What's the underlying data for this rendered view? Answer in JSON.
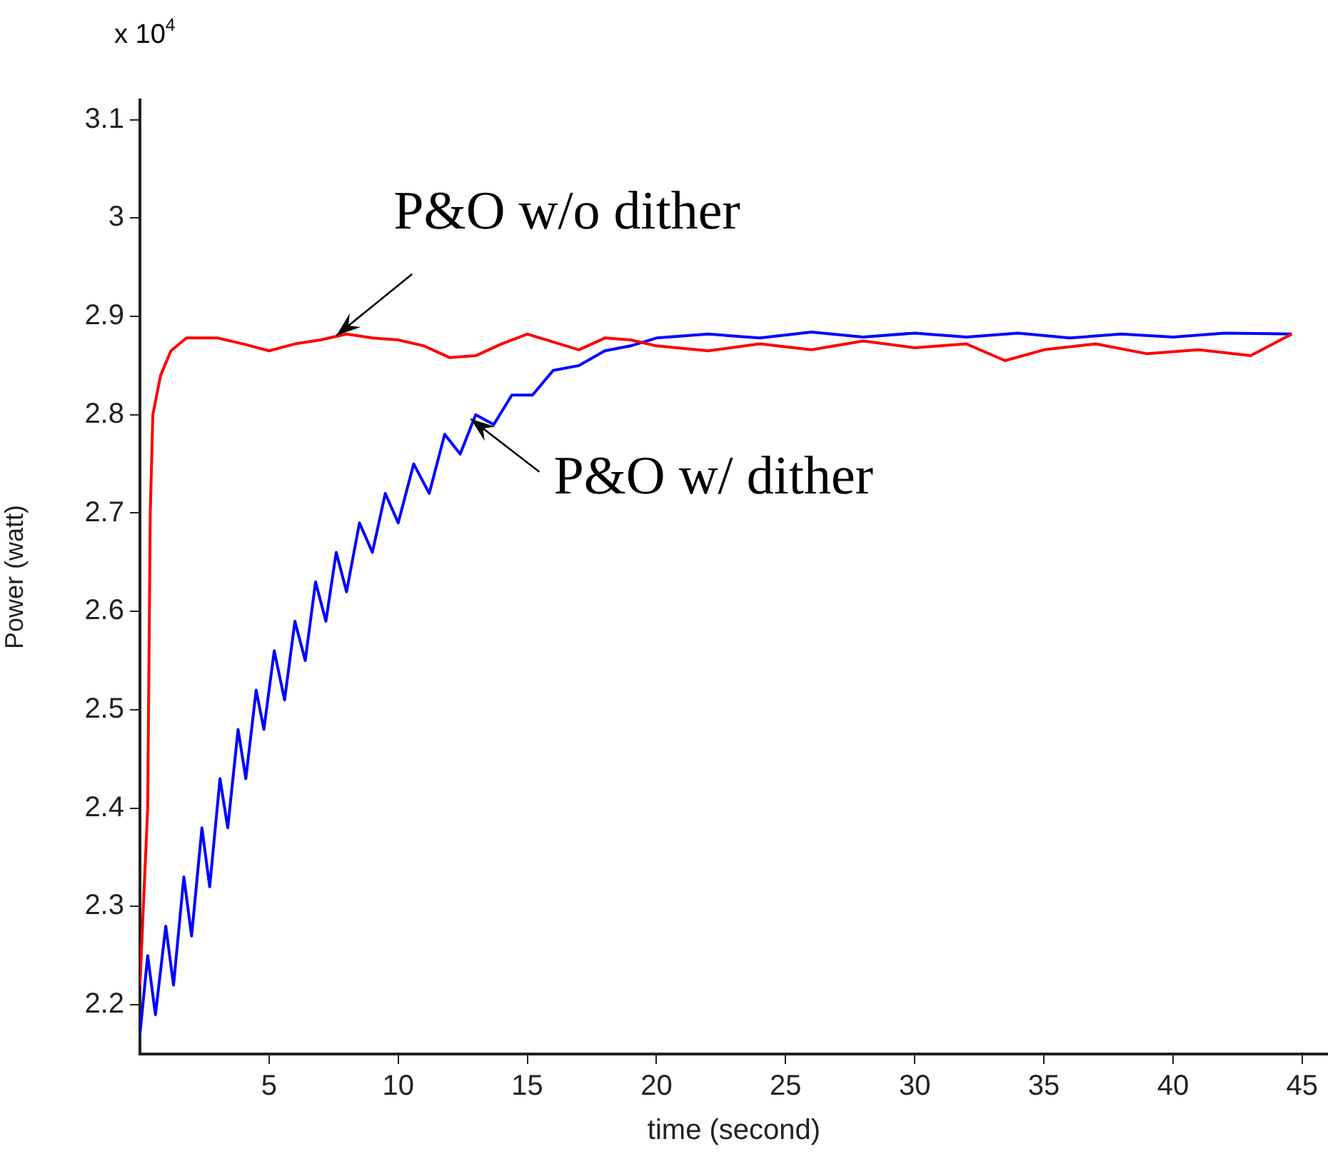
{
  "chart_data": {
    "type": "line",
    "xlabel": "time (second)",
    "ylabel": "Power (watt)",
    "xlim": [
      0,
      46
    ],
    "xticks": [
      5,
      10,
      15,
      20,
      25,
      30,
      35,
      40,
      45
    ],
    "ylim": [
      2.15,
      3.12
    ],
    "yticks": [
      2.2,
      2.3,
      2.4,
      2.5,
      2.6,
      2.7,
      2.8,
      2.9,
      3,
      3.1
    ],
    "grid": false,
    "legend": false,
    "marker": "none",
    "line_style": "solid",
    "annotations": [
      "x 10$^{4}$",
      {
        "text": "P&O w/o dither",
        "x": 7.5,
        "y": 2.885
      },
      {
        "text": "P&O w/ dither",
        "x": 12.7,
        "y": 2.8
      }
    ],
    "series": [
      {
        "color": "#ff0000",
        "x": [
          0,
          0.3,
          0.4,
          0.5,
          0.8,
          1.2,
          1.8,
          3,
          4,
          5,
          6,
          7,
          8,
          9,
          10,
          11,
          12,
          13,
          14,
          15,
          16,
          17,
          18,
          19,
          20,
          22,
          24,
          26,
          28,
          30,
          32,
          33.5,
          35,
          37,
          39,
          41,
          43,
          44.6
        ],
        "values": [
          2.22,
          2.4,
          2.7,
          2.8,
          2.84,
          2.865,
          2.878,
          2.878,
          2.872,
          2.865,
          2.872,
          2.876,
          2.882,
          2.878,
          2.876,
          2.87,
          2.858,
          2.86,
          2.872,
          2.882,
          2.874,
          2.866,
          2.878,
          2.876,
          2.87,
          2.865,
          2.872,
          2.866,
          2.875,
          2.868,
          2.872,
          2.855,
          2.866,
          2.872,
          2.862,
          2.866,
          2.86,
          2.882
        ]
      },
      {
        "color": "#0000ff",
        "x": [
          0,
          0.3,
          0.6,
          1,
          1.3,
          1.7,
          2,
          2.4,
          2.7,
          3.1,
          3.4,
          3.8,
          4.1,
          4.5,
          4.8,
          5.2,
          5.6,
          6,
          6.4,
          6.8,
          7.2,
          7.6,
          8,
          8.5,
          9,
          9.5,
          10,
          10.6,
          11.2,
          11.8,
          12.4,
          13,
          13.7,
          14.4,
          15.2,
          16,
          17,
          18,
          19,
          20,
          22,
          24,
          26,
          28,
          30,
          32,
          34,
          36,
          38,
          40,
          42,
          44.6
        ],
        "values": [
          2.17,
          2.25,
          2.19,
          2.28,
          2.22,
          2.33,
          2.27,
          2.38,
          2.32,
          2.43,
          2.38,
          2.48,
          2.43,
          2.52,
          2.48,
          2.56,
          2.51,
          2.59,
          2.55,
          2.63,
          2.59,
          2.66,
          2.62,
          2.69,
          2.66,
          2.72,
          2.69,
          2.75,
          2.72,
          2.78,
          2.76,
          2.8,
          2.79,
          2.82,
          2.82,
          2.845,
          2.85,
          2.865,
          2.87,
          2.878,
          2.882,
          2.878,
          2.884,
          2.879,
          2.883,
          2.879,
          2.883,
          2.878,
          2.882,
          2.879,
          2.883,
          2.882
        ]
      }
    ]
  }
}
